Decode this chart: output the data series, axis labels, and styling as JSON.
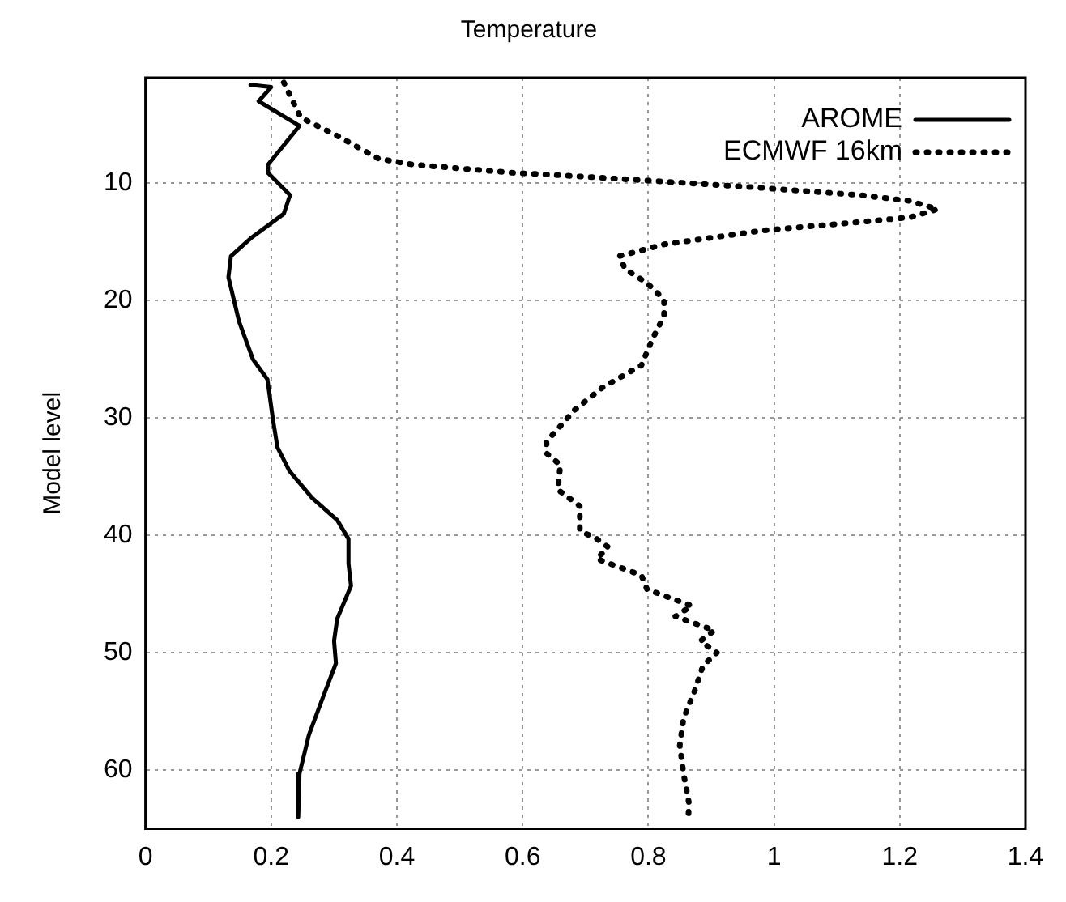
{
  "chart_data": {
    "type": "line",
    "title": "Temperature",
    "ylabel": "Model level",
    "xlim": [
      0,
      1.4
    ],
    "xticks": [
      0,
      0.2,
      0.4,
      0.6,
      0.8,
      1,
      1.2,
      1.4
    ],
    "ylim": [
      65,
      1
    ],
    "yticks": [
      10,
      20,
      30,
      40,
      50,
      60
    ],
    "grid": true,
    "legend": "top right",
    "marker": "none",
    "series": [
      {
        "name": "AROME",
        "color": "#000000",
        "line_style": "solid",
        "x": [
          0.167,
          0.2,
          0.18,
          0.245,
          0.195,
          0.195,
          0.23,
          0.22,
          0.167,
          0.136,
          0.132,
          0.149,
          0.171,
          0.194,
          0.203,
          0.21,
          0.229,
          0.265,
          0.305,
          0.323,
          0.323,
          0.327,
          0.305,
          0.3,
          0.303,
          0.283,
          0.26,
          0.245,
          0.243
        ],
        "values": [
          1.6,
          1.8,
          3,
          5.1,
          8.4,
          9.1,
          11,
          12.6,
          14.7,
          16.2,
          18,
          21.8,
          25,
          26.7,
          30.2,
          32.5,
          34.5,
          36.8,
          38.7,
          40.3,
          42.4,
          44.3,
          47.1,
          49,
          50.9,
          53.7,
          57,
          60.3,
          64
        ]
      },
      {
        "name": "ECMWF 16km",
        "color": "#000000",
        "line_style": "dotted",
        "x": [
          0.22,
          0.247,
          0.3,
          0.371,
          0.425,
          0.585,
          0.656,
          0.78,
          0.958,
          1.136,
          1.216,
          1.26,
          1.216,
          1.136,
          0.985,
          0.825,
          0.754,
          0.763,
          0.798,
          0.825,
          0.825,
          0.807,
          0.789,
          0.727,
          0.683,
          0.638,
          0.638,
          0.66,
          0.656,
          0.691,
          0.691,
          0.718,
          0.736,
          0.718,
          0.789,
          0.798,
          0.869,
          0.843,
          0.905,
          0.883,
          0.909,
          0.887,
          0.874,
          0.856,
          0.85,
          0.856,
          0.865,
          0.863
        ],
        "values": [
          1.4,
          4.4,
          5.8,
          7.9,
          8.4,
          9.1,
          9.3,
          9.7,
          10.3,
          11,
          11.5,
          12.2,
          12.9,
          13.3,
          14,
          15.2,
          16.2,
          17.3,
          18.5,
          19.9,
          21.3,
          23.2,
          25.5,
          27.4,
          29.3,
          32,
          33,
          34,
          36.1,
          37.5,
          39.6,
          40.3,
          41,
          42,
          43.4,
          44.6,
          46,
          46.9,
          48.1,
          49,
          50,
          51.1,
          53.2,
          55.6,
          57.9,
          60.3,
          62.9,
          64.3
        ]
      }
    ]
  }
}
